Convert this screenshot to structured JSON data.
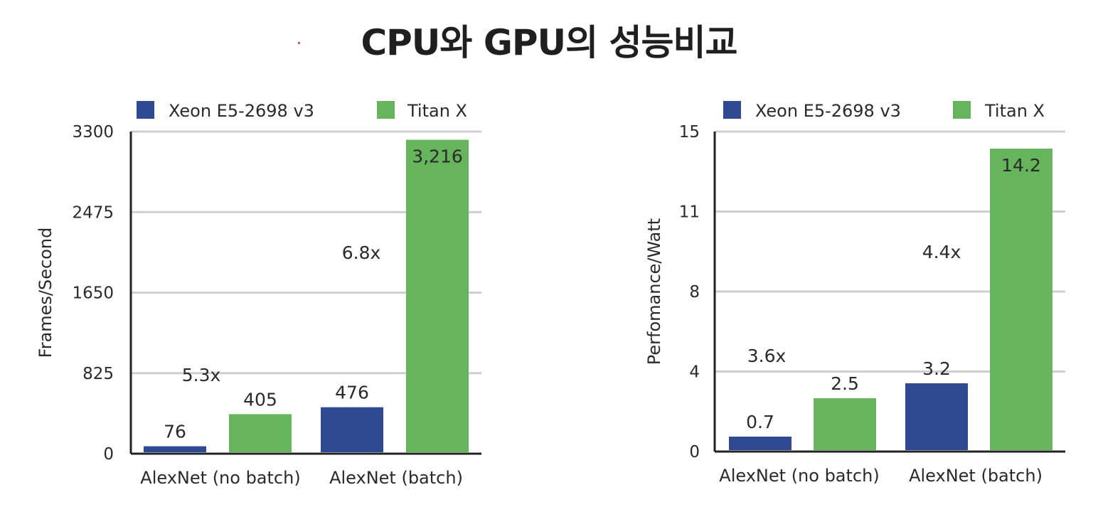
{
  "title": "CPU와 GPU의 성능비교",
  "colors": {
    "cpu": "#2f4a93",
    "gpu": "#66b45c",
    "grid": "#cfcfcf",
    "axis": "#222222"
  },
  "chart_data": [
    {
      "type": "bar",
      "ylabel": "Frames/Second",
      "xlabel": "",
      "ylim": [
        0,
        3300
      ],
      "yticks": [
        "0",
        "825",
        "1650",
        "2475",
        "3300"
      ],
      "categories": [
        "AlexNet (no batch)",
        "AlexNet (batch)"
      ],
      "series": [
        {
          "name": "Xeon E5-2698 v3",
          "values": [
            76,
            476
          ],
          "labels": [
            "76",
            "476"
          ]
        },
        {
          "name": "Titan X",
          "values": [
            405,
            3216
          ],
          "labels": [
            "405",
            "3,216"
          ]
        }
      ],
      "annotations": [
        "5.3x",
        "6.8x"
      ],
      "grid": true,
      "legend": "top"
    },
    {
      "type": "bar",
      "ylabel": "Perfomance/Watt",
      "xlabel": "",
      "ylim": [
        0,
        15
      ],
      "yticks": [
        "0",
        "4",
        "8",
        "11",
        "15"
      ],
      "categories": [
        "AlexNet (no batch)",
        "AlexNet (batch)"
      ],
      "series": [
        {
          "name": "Xeon E5-2698 v3",
          "values": [
            0.7,
            3.2
          ],
          "labels": [
            "0.7",
            "3.2"
          ]
        },
        {
          "name": "Titan X",
          "values": [
            2.5,
            14.2
          ],
          "labels": [
            "2.5",
            "14.2"
          ]
        }
      ],
      "annotations": [
        "3.6x",
        "4.4x"
      ],
      "grid": true,
      "legend": "top"
    }
  ]
}
